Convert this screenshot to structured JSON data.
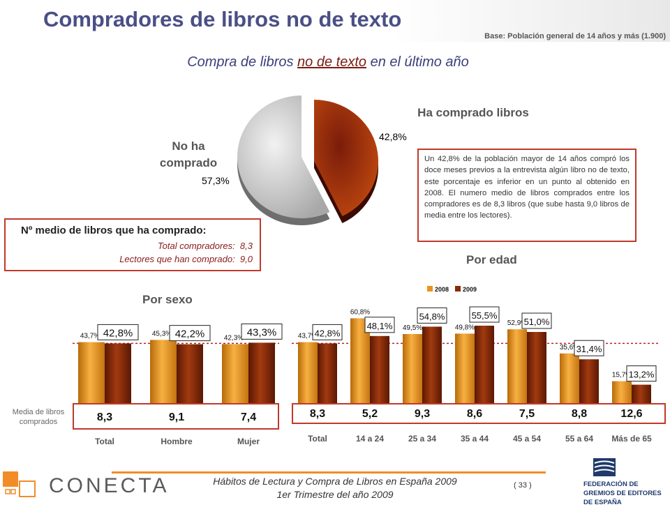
{
  "title": "Compradores de libros no de texto",
  "base_note": "Base: Población general de 14 años y más (1.900)",
  "subtitle": {
    "pre": "Compra de libros ",
    "underlined": "no de texto",
    "post": " en el último año"
  },
  "pie": {
    "bought_label": "Ha comprado libros",
    "not_bought_label": "No ha comprado",
    "bought_value": "42,8%",
    "not_bought_value": "57,3%"
  },
  "description": "Un 42,8% de la población mayor de 14 años compró los doce meses previos a la entrevista algún libro no de texto, este porcentaje es inferior en un punto al obtenido en 2008. El numero medio de libros comprados entre los compradores es de  8,3 libros (que sube hasta 9,0 libros de media entre los lectores).",
  "avg_box": {
    "title": "Nº medio de libros que ha comprado:",
    "row1_label": "Total compradores:",
    "row1_value": "8,3",
    "row2_label": "Lectores que han comprado:",
    "row2_value": "9,0"
  },
  "sex_section_title": "Por sexo",
  "age_section_title": "Por edad",
  "media_label": "Media de libros comprados",
  "colors": {
    "y2008": "#e8941a",
    "y2009": "#8b2a08",
    "accent_red": "#c0392b",
    "title_blue": "#4a4f86"
  },
  "chart_data": [
    {
      "type": "bar",
      "title": "Por sexo",
      "categories": [
        "Total",
        "Hombre",
        "Mujer"
      ],
      "series": [
        {
          "name": "2008",
          "values": [
            43.7,
            45.3,
            42.3
          ],
          "labels": [
            "43,7%",
            "45,3%",
            "42,3%"
          ]
        },
        {
          "name": "2009",
          "values": [
            42.8,
            42.2,
            43.3
          ],
          "labels": [
            "42,8%",
            "42,2%",
            "43,3%"
          ]
        }
      ],
      "media_libros": [
        "8,3",
        "9,1",
        "7,4"
      ],
      "reference_line": 42.8
    },
    {
      "type": "bar",
      "title": "Por edad",
      "categories": [
        "Total",
        "14 a 24",
        "25 a 34",
        "35 a 44",
        "45 a 54",
        "55 a 64",
        "Más de 65"
      ],
      "legend": "top-center",
      "series": [
        {
          "name": "2008",
          "values": [
            43.7,
            60.8,
            49.5,
            49.8,
            52.9,
            35.6,
            15.7
          ],
          "labels": [
            "43,7%",
            "60,8%",
            "49,5%",
            "49,8%",
            "52,9%",
            "35,6%",
            "15,7%"
          ]
        },
        {
          "name": "2009",
          "values": [
            42.8,
            48.1,
            54.8,
            55.5,
            51.0,
            31.4,
            13.2
          ],
          "labels": [
            "42,8%",
            "48,1%",
            "54,8%",
            "55,5%",
            "51,0%",
            "31,4%",
            "13,2%"
          ]
        }
      ],
      "media_libros": [
        "8,3",
        "5,2",
        "9,3",
        "8,6",
        "7,5",
        "8,8",
        "12,6"
      ],
      "reference_line": 42.8
    }
  ],
  "footer": {
    "line1": "Hábitos de Lectura y Compra de Libros en España 2009",
    "line2": "1er Trimestre del año 2009",
    "page": "( 33 )",
    "logo_left": "CONECTA",
    "logo_right": "FEDERACIÓN DE GREMIOS DE EDITORES DE ESPAÑA"
  }
}
